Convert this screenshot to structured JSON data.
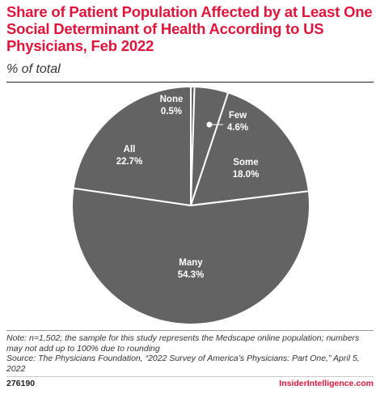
{
  "header": {
    "title": "Share of Patient Population Affected by at Least One Social Determinant of Health According to US Physicians, Feb 2022",
    "subtitle": "% of total"
  },
  "chart_data": {
    "type": "pie",
    "categories": [
      "None",
      "Few",
      "Some",
      "Many",
      "All"
    ],
    "values": [
      0.5,
      4.6,
      18.0,
      54.3,
      22.7
    ],
    "value_labels": [
      "0.5%",
      "4.6%",
      "18.0%",
      "54.3%",
      "22.7%"
    ],
    "colors": {
      "slice": "#636363",
      "separator": "#ffffff",
      "label_text": "#ffffff"
    }
  },
  "footer": {
    "note": "Note: n=1,502; the sample for this study represents the Medscape online population; numbers may not add up to 100% due to rounding",
    "source": "Source: The Physicians Foundation, “2022 Survey of America’s Physicians: Part One,” April 5, 2022",
    "id": "276190",
    "brand": "InsiderIntelligence.com"
  },
  "colors": {
    "accent": "#e0153b"
  }
}
